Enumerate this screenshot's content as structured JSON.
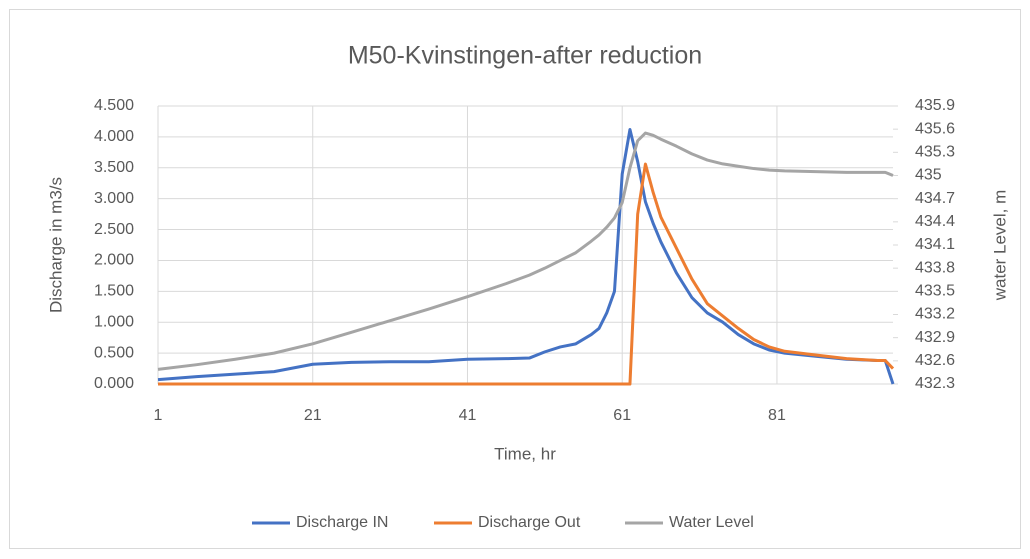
{
  "chart_data": {
    "type": "line",
    "title": "M50-Kvinstingen-after reduction",
    "x_label": "Time, hr",
    "y_label": "Discharge in m3/s",
    "y2_label": "water Level, m",
    "x": [
      1,
      6,
      11,
      16,
      21,
      26,
      31,
      36,
      41,
      46,
      49,
      51,
      53,
      55,
      57,
      58,
      59,
      60,
      61,
      62,
      63,
      64,
      65,
      66,
      68,
      70,
      72,
      74,
      76,
      78,
      80,
      82,
      86,
      90,
      94,
      95,
      96
    ],
    "xlim": [
      1,
      96
    ],
    "xticks": [
      1,
      21,
      41,
      61,
      81
    ],
    "ylim": [
      0,
      4.5
    ],
    "yticks": [
      {
        "value": 0,
        "label": "0.000"
      },
      {
        "value": 0.5,
        "label": "0.500"
      },
      {
        "value": 1,
        "label": "1.000"
      },
      {
        "value": 1.5,
        "label": "1.500"
      },
      {
        "value": 2,
        "label": "2.000"
      },
      {
        "value": 2.5,
        "label": "2.500"
      },
      {
        "value": 3,
        "label": "3.000"
      },
      {
        "value": 3.5,
        "label": "3.500"
      },
      {
        "value": 4,
        "label": "4.000"
      },
      {
        "value": 4.5,
        "label": "4.500"
      }
    ],
    "y2lim": [
      432.3,
      435.9
    ],
    "y2ticks": [
      432.3,
      432.6,
      432.9,
      433.2,
      433.5,
      433.8,
      434.1,
      434.4,
      434.7,
      435,
      435.3,
      435.6,
      435.9
    ],
    "grid": true,
    "legend": "bottom",
    "series": [
      {
        "name": "Discharge IN",
        "color": "#4472c4",
        "values": [
          0.07,
          0.12,
          0.16,
          0.2,
          0.32,
          0.35,
          0.36,
          0.36,
          0.4,
          0.41,
          0.42,
          0.52,
          0.6,
          0.65,
          0.8,
          0.9,
          1.15,
          1.5,
          3.4,
          4.12,
          3.6,
          2.95,
          2.6,
          2.3,
          1.8,
          1.4,
          1.15,
          1.0,
          0.8,
          0.65,
          0.55,
          0.5,
          0.45,
          0.4,
          0.38,
          0.38,
          0.0
        ]
      },
      {
        "name": "Discharge Out",
        "color": "#ed7d31",
        "values": [
          0,
          0,
          0,
          0,
          0,
          0,
          0,
          0,
          0,
          0,
          0,
          0,
          0,
          0,
          0,
          0,
          0,
          0,
          0,
          0,
          2.75,
          3.56,
          3.1,
          2.7,
          2.2,
          1.7,
          1.3,
          1.1,
          0.9,
          0.72,
          0.6,
          0.53,
          0.47,
          0.41,
          0.38,
          0.38,
          0.25
        ]
      },
      {
        "name": "Water Level",
        "color": "#a5a5a5",
        "axis": "y2",
        "values": [
          432.49,
          432.55,
          432.62,
          432.7,
          432.82,
          432.97,
          433.12,
          433.27,
          433.43,
          433.6,
          433.71,
          433.8,
          433.9,
          434.0,
          434.15,
          434.23,
          434.33,
          434.45,
          434.65,
          435.1,
          435.45,
          435.55,
          435.52,
          435.47,
          435.38,
          435.28,
          435.2,
          435.15,
          435.12,
          435.09,
          435.07,
          435.06,
          435.05,
          435.04,
          435.04,
          435.04,
          435.0
        ]
      }
    ]
  }
}
